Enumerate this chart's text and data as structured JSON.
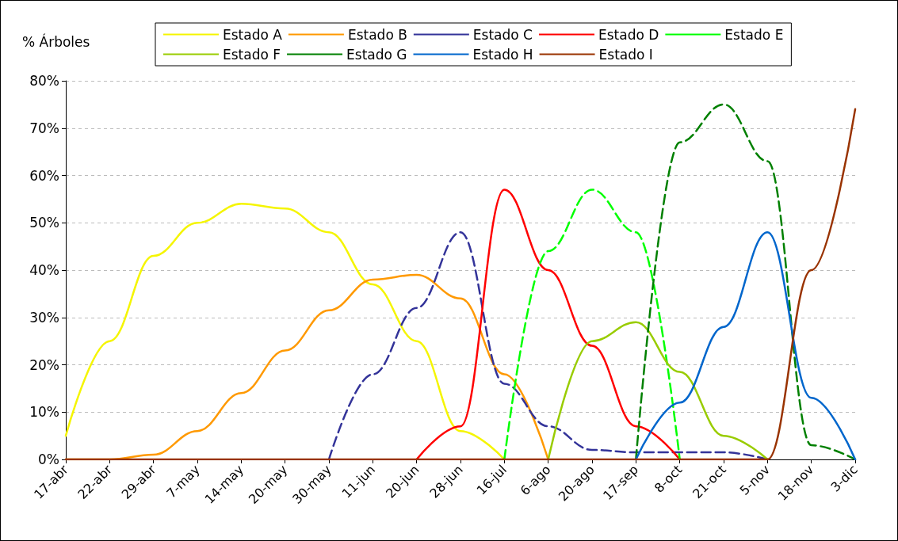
{
  "chart_data": {
    "type": "line",
    "ylabel": "% Árboles",
    "categories": [
      "17-abr",
      "22-abr",
      "29-abr",
      "7-may",
      "14-may",
      "20-may",
      "30-may",
      "11-jun",
      "20-jun",
      "28-jun",
      "16-jul",
      "6-ago",
      "20-ago",
      "17-sep",
      "8-oct",
      "21-oct",
      "5-nov",
      "18-nov",
      "3-dic"
    ],
    "series": [
      {
        "name": "Estado A",
        "color": "#f5f500",
        "line_style": "solid",
        "values": [
          5,
          25,
          43,
          50,
          54,
          53,
          48,
          37,
          25,
          6,
          0,
          null,
          null,
          null,
          null,
          null,
          null,
          null,
          null
        ]
      },
      {
        "name": "Estado B",
        "color": "#ff9900",
        "line_style": "solid",
        "values": [
          0,
          0,
          1,
          6,
          14,
          23,
          31.5,
          38,
          39,
          34,
          18,
          0,
          null,
          null,
          null,
          null,
          null,
          null,
          null
        ]
      },
      {
        "name": "Estado C",
        "color": "#333399",
        "line_style": "dashed",
        "values": [
          null,
          null,
          null,
          null,
          null,
          null,
          0,
          18,
          32,
          48,
          16,
          7,
          2,
          1.5,
          1.5,
          1.5,
          0,
          null,
          null
        ]
      },
      {
        "name": "Estado D",
        "color": "#ff0000",
        "line_style": "solid",
        "values": [
          null,
          null,
          null,
          null,
          null,
          null,
          null,
          null,
          0,
          7,
          57,
          40,
          24,
          7,
          0,
          null,
          null,
          null,
          null
        ]
      },
      {
        "name": "Estado E",
        "color": "#00ff00",
        "line_style": "dashed",
        "values": [
          null,
          null,
          null,
          null,
          null,
          null,
          null,
          null,
          null,
          null,
          0,
          44,
          57,
          48,
          0,
          null,
          null,
          null,
          null
        ]
      },
      {
        "name": "Estado F",
        "color": "#99cc00",
        "line_style": "solid",
        "values": [
          null,
          null,
          null,
          null,
          null,
          null,
          null,
          null,
          null,
          null,
          null,
          0,
          25,
          29,
          18.5,
          5,
          0,
          null,
          null
        ]
      },
      {
        "name": "Estado G",
        "color": "#008000",
        "line_style": "dashed",
        "values": [
          null,
          null,
          null,
          null,
          null,
          null,
          null,
          null,
          null,
          null,
          null,
          null,
          null,
          0,
          67,
          75,
          63,
          3,
          0
        ]
      },
      {
        "name": "Estado H",
        "color": "#0066cc",
        "line_style": "solid",
        "values": [
          null,
          null,
          null,
          null,
          null,
          null,
          null,
          null,
          null,
          null,
          null,
          null,
          null,
          0,
          12,
          28,
          48,
          13,
          0
        ]
      },
      {
        "name": "Estado I",
        "color": "#993300",
        "line_style": "solid",
        "values": [
          0,
          0,
          0,
          0,
          0,
          0,
          0,
          0,
          0,
          0,
          0,
          0,
          0,
          0,
          0,
          0,
          0,
          40,
          74
        ]
      }
    ],
    "ylim": [
      0,
      80
    ],
    "yticks": [
      {
        "value": 0,
        "label": "0%"
      },
      {
        "value": 10,
        "label": "10%"
      },
      {
        "value": 20,
        "label": "20%"
      },
      {
        "value": 30,
        "label": "30%"
      },
      {
        "value": 40,
        "label": "40%"
      },
      {
        "value": 50,
        "label": "50%"
      },
      {
        "value": 60,
        "label": "60%"
      },
      {
        "value": 70,
        "label": "70%"
      },
      {
        "value": 80,
        "label": "80%"
      }
    ],
    "grid": "y",
    "legend": "top",
    "marker": "none"
  }
}
